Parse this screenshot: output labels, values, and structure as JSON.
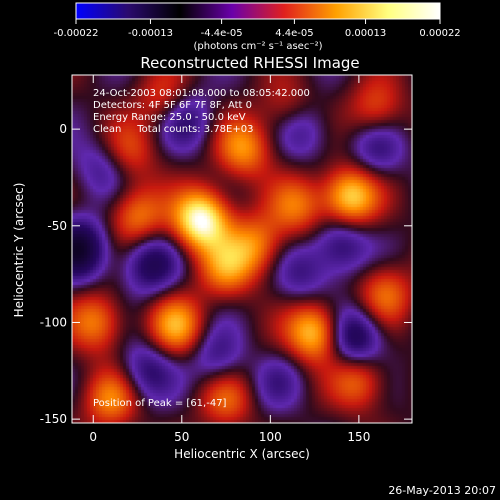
{
  "colorbar": {
    "tick_labels": [
      "-0.00022",
      "-0.00013",
      "-4.4e-05",
      "4.4e-05",
      "0.00013",
      "0.00022"
    ],
    "unit_label": "(photons cm⁻² s⁻¹ asec⁻²)",
    "range": [
      -0.00022,
      0.00022
    ],
    "colors": [
      "#0000ff",
      "#2a0a6e",
      "#000000",
      "#6a00aa",
      "#e0201e",
      "#ffa000",
      "#ffff80",
      "#ffffff"
    ]
  },
  "chart_data": {
    "type": "heatmap",
    "title": "Reconstructed RHESSI Image",
    "xlabel": "Heliocentric X (arcsec)",
    "ylabel": "Heliocentric Y (arcsec)",
    "xlim": [
      -12,
      180
    ],
    "ylim": [
      -152,
      28
    ],
    "xticks": [
      0,
      50,
      100,
      150
    ],
    "yticks": [
      0,
      -50,
      -100,
      -150
    ],
    "peak": {
      "x": 61,
      "y": -47
    },
    "blobs": [
      {
        "x": 61,
        "y": -47,
        "amp": 1.0
      },
      {
        "x": 145,
        "y": -35,
        "amp": 0.8
      },
      {
        "x": 125,
        "y": -105,
        "amp": 0.75
      },
      {
        "x": 85,
        "y": -10,
        "amp": 0.55
      },
      {
        "x": 75,
        "y": -72,
        "amp": 0.5
      },
      {
        "x": 92,
        "y": -60,
        "amp": 0.5
      },
      {
        "x": 47,
        "y": -102,
        "amp": 0.6
      },
      {
        "x": 25,
        "y": -45,
        "amp": 0.5
      },
      {
        "x": 2,
        "y": -100,
        "amp": 0.5
      },
      {
        "x": 20,
        "y": -12,
        "amp": 0.35
      },
      {
        "x": 10,
        "y": -140,
        "amp": 0.5
      },
      {
        "x": 150,
        "y": -130,
        "amp": 0.45
      },
      {
        "x": 165,
        "y": -85,
        "amp": 0.45
      },
      {
        "x": 115,
        "y": -40,
        "amp": 0.45
      },
      {
        "x": 160,
        "y": 10,
        "amp": 0.4
      },
      {
        "x": 40,
        "y": 15,
        "amp": 0.35
      },
      {
        "x": 110,
        "y": 10,
        "amp": 0.3
      },
      {
        "x": 75,
        "y": -140,
        "amp": 0.4
      },
      {
        "x": 100,
        "y": -125,
        "amp": 0.3
      },
      {
        "x": -8,
        "y": -62,
        "amp": -0.7
      },
      {
        "x": 102,
        "y": -128,
        "amp": -0.5
      },
      {
        "x": 148,
        "y": -108,
        "amp": -0.6
      },
      {
        "x": 32,
        "y": -70,
        "amp": -0.5
      },
      {
        "x": 140,
        "y": -60,
        "amp": -0.45
      },
      {
        "x": 52,
        "y": 5,
        "amp": -0.4
      },
      {
        "x": 118,
        "y": 0,
        "amp": -0.35
      },
      {
        "x": 160,
        "y": -10,
        "amp": -0.35
      },
      {
        "x": 30,
        "y": -125,
        "amp": -0.4
      },
      {
        "x": 70,
        "y": -118,
        "amp": -0.35
      },
      {
        "x": 5,
        "y": -20,
        "amp": -0.3
      },
      {
        "x": 118,
        "y": -75,
        "amp": -0.3
      }
    ],
    "annotations": [
      "24-Oct-2003 08:01:08.000 to 08:05:42.000",
      "Detectors: 4F 5F 6F 7F 8F, Att 0",
      "Energy Range: 25.0 - 50.0 keV",
      "Clean     Total counts: 3.78E+03"
    ],
    "peak_label": "Position of Peak = [61,-47]"
  },
  "footer": {
    "timestamp": "26-May-2013 20:07"
  }
}
